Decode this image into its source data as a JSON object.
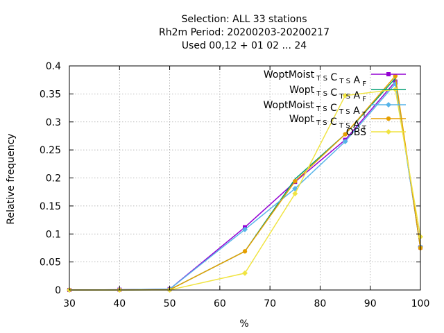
{
  "chart_data": {
    "type": "line",
    "title_lines": [
      "Selection: ALL      33 stations",
      "Rh2m  Period: 20200203-20200217",
      "Used  00,12  + 01 02 ... 24"
    ],
    "xlabel": "%",
    "ylabel": "Relative frequency",
    "xlim": [
      30,
      100
    ],
    "ylim": [
      0,
      0.4
    ],
    "x_ticks": [
      30,
      40,
      50,
      60,
      70,
      80,
      90,
      100
    ],
    "y_ticks": [
      0,
      0.05,
      0.1,
      0.15,
      0.2,
      0.25,
      0.3,
      0.35,
      0.4
    ],
    "y_tick_labels": [
      "0",
      "0.05",
      "0.1",
      "0.15",
      "0.2",
      "0.25",
      "0.3",
      "0.35",
      "0.4"
    ],
    "grid": true,
    "legend_position": "top-right",
    "series": [
      {
        "legend_main": "WoptMoist",
        "legend_parts": [
          [
            "T",
            "S",
            "sub"
          ],
          [
            "C",
            null,
            "main"
          ],
          [
            "T",
            "S",
            "sub"
          ],
          [
            "A",
            null,
            "main"
          ],
          [
            "F",
            null,
            "sub"
          ]
        ],
        "color": "#9400d3",
        "marker": "square",
        "x": [
          30,
          40,
          50,
          65,
          75,
          85,
          95,
          100
        ],
        "y": [
          0.0,
          0.0005,
          0.0015,
          0.112,
          0.193,
          0.268,
          0.372,
          0.076
        ]
      },
      {
        "legend_main": "Wopt",
        "legend_parts": [
          [
            "T",
            "S",
            "sub"
          ],
          [
            "C",
            null,
            "main"
          ],
          [
            "T",
            "S",
            "sub"
          ],
          [
            "A",
            null,
            "main"
          ],
          [
            "F",
            null,
            "sub"
          ]
        ],
        "color": "#009e73",
        "marker": "none",
        "x": [
          30,
          40,
          50,
          65,
          75,
          85,
          95,
          100
        ],
        "y": [
          0.0,
          0.0,
          0.0005,
          0.069,
          0.198,
          0.278,
          0.378,
          0.075
        ]
      },
      {
        "legend_main": "WoptMoist",
        "legend_parts": [
          [
            "T",
            "S",
            "sub"
          ],
          [
            "C",
            null,
            "main"
          ],
          [
            "T",
            "S",
            "sub"
          ],
          [
            "A",
            null,
            "main"
          ],
          [
            "T",
            null,
            "sub"
          ]
        ],
        "color": "#56b4e9",
        "marker": "diamond",
        "x": [
          30,
          40,
          50,
          65,
          75,
          85,
          95,
          100
        ],
        "y": [
          0.0,
          0.0005,
          0.0015,
          0.108,
          0.181,
          0.265,
          0.368,
          0.077
        ]
      },
      {
        "legend_main": "Wopt",
        "legend_parts": [
          [
            "T",
            "S",
            "sub"
          ],
          [
            "C",
            null,
            "main"
          ],
          [
            "T",
            "S",
            "sub"
          ],
          [
            "A",
            null,
            "main"
          ],
          [
            "T",
            null,
            "sub"
          ]
        ],
        "color": "#e69f00",
        "marker": "circle",
        "x": [
          30,
          40,
          50,
          65,
          75,
          85,
          95,
          100
        ],
        "y": [
          0.0,
          0.0,
          0.0005,
          0.069,
          0.194,
          0.278,
          0.382,
          0.075
        ]
      },
      {
        "legend_main": "OBS",
        "legend_parts": [],
        "color": "#f0e442",
        "marker": "diamond",
        "x": [
          30,
          40,
          50,
          65,
          75,
          85,
          95,
          100
        ],
        "y": [
          0.0,
          0.0,
          0.0,
          0.03,
          0.172,
          0.347,
          0.358,
          0.095
        ]
      }
    ]
  }
}
